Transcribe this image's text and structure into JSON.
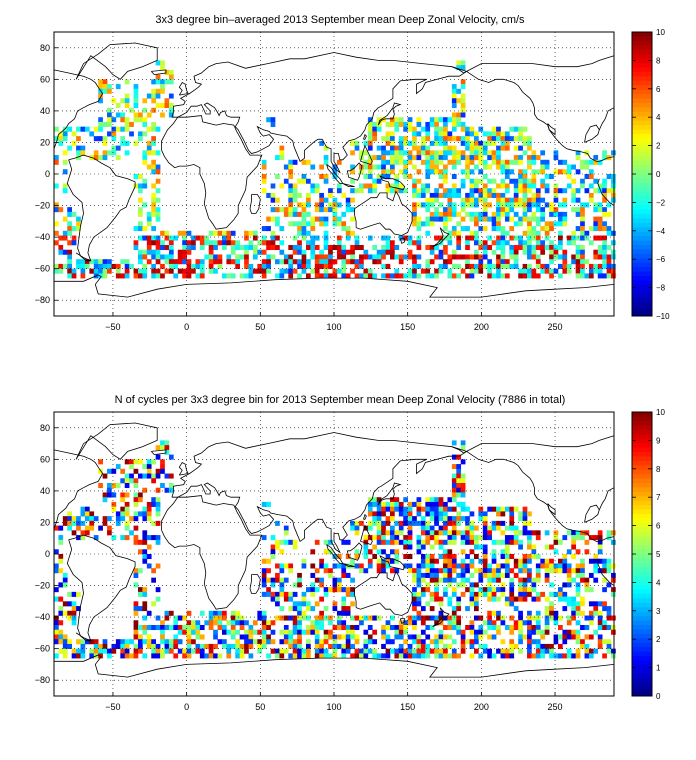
{
  "figure": {
    "panels": [
      {
        "id": "velocity",
        "title": "3x3 degree bin–averaged 2013 September mean Deep Zonal Velocity, cm/s",
        "colorbar_ticks": [
          "10",
          "8",
          "6",
          "4",
          "2",
          "0",
          "−2",
          "−4",
          "−6",
          "−8",
          "−10"
        ],
        "colorbar_range": [
          -10,
          10
        ],
        "colormap": "jet"
      },
      {
        "id": "cycles",
        "title": "N of cycles per 3x3 degree bin for 2013 September mean Deep Zonal Velocity (7886 in total)",
        "colorbar_ticks": [
          "10",
          "9",
          "8",
          "7",
          "6",
          "5",
          "4",
          "3",
          "2",
          "1",
          "0"
        ],
        "colorbar_range": [
          0,
          10
        ],
        "colormap": "jet"
      }
    ],
    "x_tick_labels": [
      "−50",
      "0",
      "50",
      "100",
      "150",
      "200",
      "250"
    ],
    "y_tick_labels": [
      "80",
      "60",
      "40",
      "20",
      "0",
      "−20",
      "−40",
      "−60",
      "−80"
    ]
  },
  "chart_data": [
    {
      "type": "heatmap",
      "title": "3x3 degree bin–averaged 2013 September mean Deep Zonal Velocity, cm/s",
      "xlim": [
        -90,
        290
      ],
      "ylim": [
        -90,
        90
      ],
      "xticks": [
        -50,
        0,
        50,
        100,
        150,
        200,
        250
      ],
      "yticks": [
        80,
        60,
        40,
        20,
        0,
        -20,
        -40,
        -60,
        -80
      ],
      "grid": true,
      "bin_size_deg": 3,
      "colorbar": {
        "min": -10,
        "max": 10,
        "placement": "right"
      }
    },
    {
      "type": "heatmap",
      "title": "N of cycles per 3x3 degree bin for 2013 September mean Deep Zonal Velocity (7886 in total)",
      "xlim": [
        -90,
        290
      ],
      "ylim": [
        -90,
        90
      ],
      "xticks": [
        -50,
        0,
        50,
        100,
        150,
        200,
        250
      ],
      "yticks": [
        80,
        60,
        40,
        20,
        0,
        -20,
        -40,
        -60,
        -80
      ],
      "grid": true,
      "bin_size_deg": 3,
      "total_cycles": 7886,
      "colorbar": {
        "min": 0,
        "max": 10,
        "placement": "right"
      }
    }
  ]
}
